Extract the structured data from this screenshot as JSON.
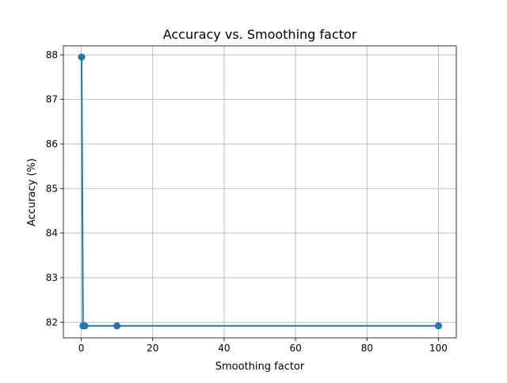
{
  "chart_data": {
    "type": "line",
    "title": "Accuracy vs. Smoothing factor",
    "xlabel": "Smoothing factor",
    "ylabel": "Accuracy (%)",
    "x": [
      0.1,
      0.5,
      1,
      10,
      100
    ],
    "series": [
      {
        "values": [
          87.95,
          81.92,
          81.92,
          81.92,
          81.92
        ]
      }
    ],
    "xlim": [
      -5,
      105
    ],
    "ylim": [
      81.65,
      88.2
    ],
    "xticks": [
      0,
      20,
      40,
      60,
      80,
      100
    ],
    "yticks": [
      82,
      83,
      84,
      85,
      86,
      87,
      88
    ],
    "grid": true,
    "line_color": "#1f77b4",
    "marker": "circle"
  }
}
